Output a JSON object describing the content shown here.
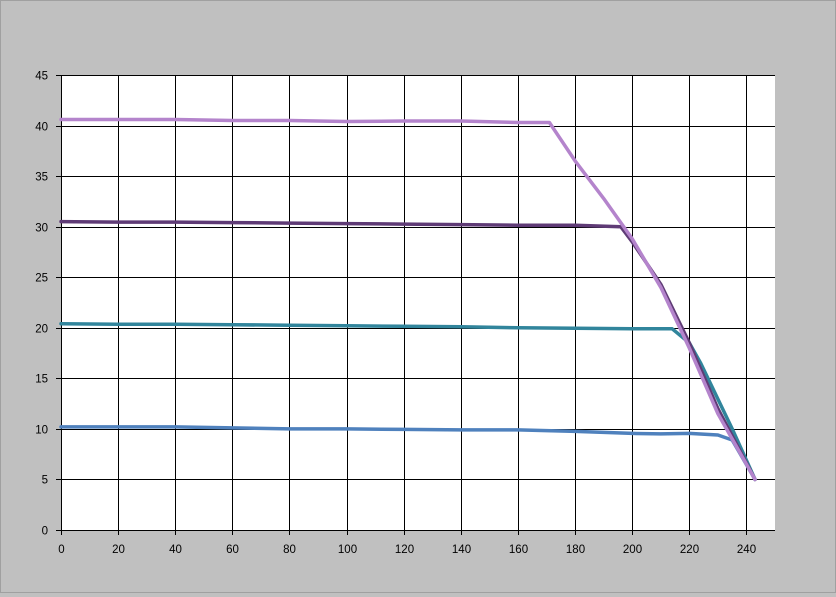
{
  "chart_data": {
    "type": "line",
    "title": "",
    "xlabel": "",
    "ylabel": "",
    "xlim": [
      0,
      250
    ],
    "ylim": [
      0,
      45
    ],
    "x_ticks": [
      0,
      20,
      40,
      60,
      80,
      100,
      120,
      140,
      160,
      180,
      200,
      220,
      240
    ],
    "y_ticks": [
      0,
      5,
      10,
      15,
      20,
      25,
      30,
      35,
      40,
      45
    ],
    "x_grid_step": 20,
    "y_grid_step": 5,
    "grid": true,
    "legend": "none",
    "plot_background": "#ffffff",
    "figure_background": "#c0c0c0",
    "series": [
      {
        "color": "#4f81bd",
        "points": [
          [
            0,
            10.2
          ],
          [
            20,
            10.2
          ],
          [
            40,
            10.2
          ],
          [
            60,
            10.1
          ],
          [
            80,
            10.0
          ],
          [
            100,
            10.0
          ],
          [
            120,
            9.95
          ],
          [
            140,
            9.9
          ],
          [
            160,
            9.9
          ],
          [
            180,
            9.75
          ],
          [
            200,
            9.55
          ],
          [
            210,
            9.5
          ],
          [
            220,
            9.55
          ],
          [
            230,
            9.4
          ],
          [
            235,
            8.9
          ],
          [
            243,
            5.0
          ]
        ]
      },
      {
        "color": "#31859c",
        "points": [
          [
            0,
            20.4
          ],
          [
            20,
            20.35
          ],
          [
            40,
            20.35
          ],
          [
            60,
            20.3
          ],
          [
            80,
            20.25
          ],
          [
            100,
            20.2
          ],
          [
            120,
            20.15
          ],
          [
            140,
            20.1
          ],
          [
            160,
            20.0
          ],
          [
            180,
            19.95
          ],
          [
            200,
            19.9
          ],
          [
            214,
            19.9
          ],
          [
            220,
            18.5
          ],
          [
            224,
            16.5
          ],
          [
            235,
            10.0
          ],
          [
            243,
            5.0
          ]
        ]
      },
      {
        "color": "#5f3b76",
        "points": [
          [
            0,
            30.5
          ],
          [
            20,
            30.45
          ],
          [
            40,
            30.45
          ],
          [
            60,
            30.4
          ],
          [
            80,
            30.35
          ],
          [
            100,
            30.3
          ],
          [
            120,
            30.25
          ],
          [
            140,
            30.2
          ],
          [
            160,
            30.15
          ],
          [
            180,
            30.15
          ],
          [
            196,
            30.0
          ],
          [
            200,
            28.5
          ],
          [
            210,
            24.3
          ],
          [
            220,
            18.5
          ],
          [
            230,
            12.0
          ],
          [
            243,
            5.0
          ]
        ]
      },
      {
        "color": "#b484cc",
        "points": [
          [
            0,
            40.6
          ],
          [
            20,
            40.6
          ],
          [
            40,
            40.6
          ],
          [
            60,
            40.5
          ],
          [
            80,
            40.5
          ],
          [
            100,
            40.4
          ],
          [
            120,
            40.45
          ],
          [
            140,
            40.45
          ],
          [
            160,
            40.3
          ],
          [
            171,
            40.3
          ],
          [
            180,
            36.5
          ],
          [
            190,
            32.8
          ],
          [
            200,
            28.8
          ],
          [
            210,
            24.0
          ],
          [
            220,
            18.0
          ],
          [
            230,
            11.5
          ],
          [
            243,
            5.0
          ]
        ]
      }
    ]
  }
}
